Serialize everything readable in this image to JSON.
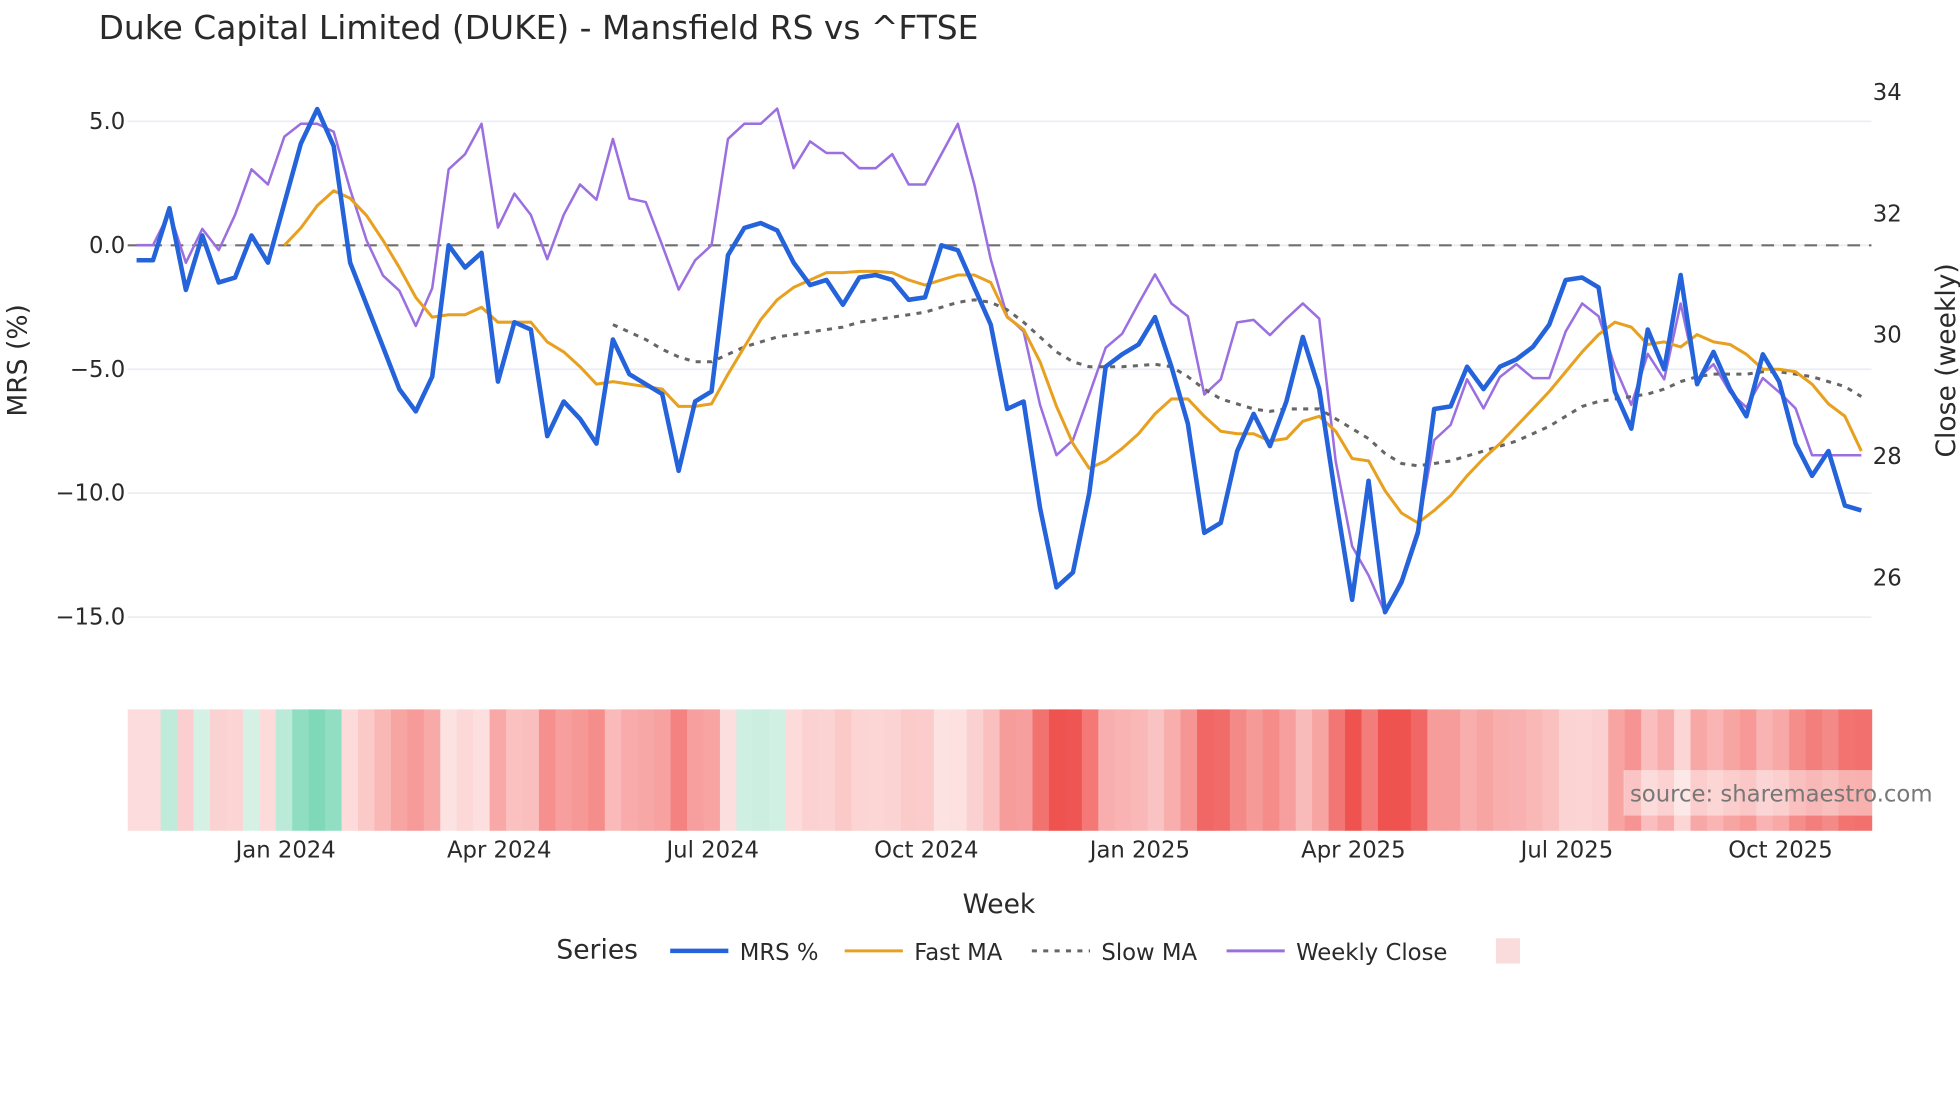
{
  "chart_data": {
    "type": "line",
    "title": "Duke Capital Limited (DUKE) - Mansfield RS vs ^FTSE",
    "xlabel": "Week",
    "ylabel": "MRS (%)",
    "y2label": "Close (weekly)",
    "x_tick_labels": [
      "Jan 2024",
      "Apr 2024",
      "Jul 2024",
      "Oct 2024",
      "Jan 2025",
      "Apr 2025",
      "Jul 2025",
      "Oct 2025"
    ],
    "x_tick_index": [
      9,
      22,
      35,
      48,
      61,
      74,
      87,
      100
    ],
    "y_ticks": [
      5.0,
      0.0,
      -5.0,
      -10.0,
      -15.0
    ],
    "y_tick_labels": [
      "5.0",
      "0.0",
      "−5.0",
      "−10.0",
      "−15.0"
    ],
    "y2_ticks": [
      34,
      32,
      30,
      28,
      26
    ],
    "y2_tick_labels": [
      "34",
      "32",
      "30",
      "28",
      "26"
    ],
    "ylim": [
      -15.9,
      5.9
    ],
    "y2lim": [
      25.2,
      34.5
    ],
    "grid": true,
    "reference_line": 0,
    "legend_title": "Series",
    "legend_placement": "bottom",
    "source_note": "source: sharemaestro.com",
    "series": [
      {
        "name": "MRS %",
        "axis": "left",
        "color": "#2563db",
        "values": [
          -0.6,
          -0.6,
          1.5,
          -1.8,
          0.4,
          -1.5,
          -1.3,
          0.4,
          -0.7,
          1.7,
          4.1,
          5.5,
          4.0,
          -0.7,
          -2.4,
          -4.1,
          -5.8,
          -6.7,
          -5.3,
          0.0,
          -0.9,
          -0.3,
          -5.5,
          -3.1,
          -3.4,
          -7.7,
          -6.3,
          -7.0,
          -8.0,
          -3.8,
          -5.2,
          -5.6,
          -6.0,
          -9.1,
          -6.3,
          -5.9,
          -0.4,
          0.7,
          0.9,
          0.6,
          -0.7,
          -1.6,
          -1.4,
          -2.4,
          -1.3,
          -1.2,
          -1.4,
          -2.2,
          -2.1,
          0.0,
          -0.2,
          -1.7,
          -3.2,
          -6.6,
          -6.3,
          -10.6,
          -13.8,
          -13.2,
          -10.0,
          -4.9,
          -4.4,
          -4.0,
          -2.9,
          -4.9,
          -7.2,
          -11.6,
          -11.2,
          -8.3,
          -6.8,
          -8.1,
          -6.3,
          -3.7,
          -5.8,
          -10.2,
          -14.3,
          -9.5,
          -14.8,
          -13.6,
          -11.6,
          -6.6,
          -6.5,
          -4.9,
          -5.8,
          -4.9,
          -4.6,
          -4.1,
          -3.2,
          -1.4,
          -1.3,
          -1.7,
          -5.9,
          -7.4,
          -3.4,
          -5.0,
          -1.2,
          -5.6,
          -4.3,
          -5.8,
          -6.9,
          -4.4,
          -5.5,
          -8.0,
          -9.3,
          -8.3,
          -10.5,
          -10.7
        ]
      },
      {
        "name": "Fast MA",
        "axis": "left",
        "color": "#e8a020",
        "values": [
          null,
          null,
          null,
          null,
          null,
          null,
          null,
          null,
          null,
          0.0,
          0.7,
          1.6,
          2.2,
          1.9,
          1.2,
          0.2,
          -0.9,
          -2.1,
          -2.9,
          -2.8,
          -2.8,
          -2.5,
          -3.1,
          -3.1,
          -3.1,
          -3.9,
          -4.3,
          -4.9,
          -5.6,
          -5.5,
          -5.6,
          -5.7,
          -5.8,
          -6.5,
          -6.5,
          -6.4,
          -5.2,
          -4.1,
          -3.0,
          -2.2,
          -1.7,
          -1.4,
          -1.1,
          -1.1,
          -1.05,
          -1.05,
          -1.1,
          -1.4,
          -1.6,
          -1.4,
          -1.2,
          -1.2,
          -1.5,
          -2.9,
          -3.4,
          -4.7,
          -6.5,
          -8.0,
          -9.0,
          -8.7,
          -8.2,
          -7.6,
          -6.8,
          -6.2,
          -6.2,
          -6.9,
          -7.5,
          -7.6,
          -7.6,
          -7.9,
          -7.8,
          -7.1,
          -6.9,
          -7.5,
          -8.6,
          -8.7,
          -9.9,
          -10.8,
          -11.2,
          -10.7,
          -10.1,
          -9.3,
          -8.6,
          -8.0,
          -7.3,
          -6.6,
          -5.9,
          -5.1,
          -4.3,
          -3.6,
          -3.1,
          -3.3,
          -4.0,
          -3.9,
          -4.1,
          -3.6,
          -3.9,
          -4.0,
          -4.4,
          -5.0,
          -5.0,
          -5.1,
          -5.6,
          -6.4,
          -6.9,
          -8.3
        ]
      },
      {
        "name": "Slow MA",
        "axis": "left",
        "color": "#666666",
        "dash": "dot",
        "values": [
          null,
          null,
          null,
          null,
          null,
          null,
          null,
          null,
          null,
          null,
          null,
          null,
          null,
          null,
          null,
          null,
          null,
          null,
          null,
          null,
          null,
          null,
          null,
          null,
          null,
          null,
          null,
          null,
          null,
          -3.2,
          -3.5,
          -3.8,
          -4.2,
          -4.5,
          -4.7,
          -4.7,
          -4.4,
          -4.1,
          -3.9,
          -3.7,
          -3.6,
          -3.5,
          -3.4,
          -3.3,
          -3.1,
          -3.0,
          -2.9,
          -2.8,
          -2.7,
          -2.5,
          -2.3,
          -2.2,
          -2.3,
          -2.6,
          -3.1,
          -3.7,
          -4.3,
          -4.7,
          -4.9,
          -4.9,
          -4.9,
          -4.85,
          -4.8,
          -4.9,
          -5.3,
          -5.8,
          -6.2,
          -6.4,
          -6.6,
          -6.7,
          -6.6,
          -6.6,
          -6.6,
          -7.0,
          -7.4,
          -7.8,
          -8.4,
          -8.8,
          -8.9,
          -8.8,
          -8.7,
          -8.5,
          -8.3,
          -8.1,
          -7.9,
          -7.6,
          -7.3,
          -6.9,
          -6.5,
          -6.3,
          -6.2,
          -6.1,
          -6.0,
          -5.8,
          -5.5,
          -5.3,
          -5.2,
          -5.2,
          -5.2,
          -5.1,
          -5.1,
          -5.2,
          -5.3,
          -5.5,
          -5.7,
          -6.1
        ]
      },
      {
        "name": "Weekly Close",
        "axis": "right",
        "color": "#9b6fe0",
        "values": [
          31.46,
          31.46,
          32.0,
          31.17,
          31.73,
          31.38,
          31.96,
          32.71,
          32.46,
          33.25,
          33.46,
          33.46,
          33.33,
          32.38,
          31.54,
          30.96,
          30.71,
          30.13,
          30.75,
          32.71,
          32.96,
          33.46,
          31.75,
          32.31,
          31.96,
          31.23,
          31.96,
          32.46,
          32.21,
          33.21,
          32.23,
          32.17,
          31.46,
          30.73,
          31.21,
          31.46,
          33.21,
          33.46,
          33.46,
          33.71,
          32.73,
          33.17,
          32.98,
          32.98,
          32.73,
          32.73,
          32.96,
          32.46,
          32.46,
          32.96,
          33.46,
          32.46,
          31.23,
          30.29,
          30.04,
          28.83,
          28.0,
          28.25,
          29.0,
          29.77,
          30.0,
          30.5,
          30.98,
          30.5,
          30.29,
          29.0,
          29.25,
          30.19,
          30.23,
          29.98,
          30.25,
          30.5,
          30.25,
          27.9,
          26.5,
          26.02,
          25.4,
          25.96,
          26.79,
          28.25,
          28.5,
          29.25,
          28.77,
          29.29,
          29.5,
          29.27,
          29.27,
          30.04,
          30.5,
          30.29,
          29.46,
          28.83,
          29.67,
          29.25,
          30.5,
          29.25,
          29.5,
          29.04,
          28.79,
          29.27,
          29.04,
          28.77,
          28.0,
          28.0,
          28.0,
          28.0
        ]
      }
    ],
    "heatmap": {
      "source_series": "MRS %",
      "negative_color": "#ef5350",
      "positive_color": "#7fd9b8",
      "neutral_color": "#fde2e2"
    },
    "legend_swatch_color": "#fadcdc"
  }
}
